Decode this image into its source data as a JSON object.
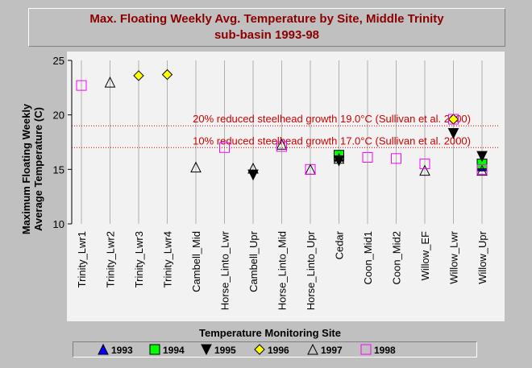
{
  "title": {
    "line1": "Max. Floating Weekly Avg. Temperature by Site, Middle Trinity",
    "line2": "sub-basin 1993-98"
  },
  "chart_data": {
    "type": "scatter",
    "title": "Max. Floating Weekly Avg. Temperature by Site, Middle Trinity sub-basin 1993-98",
    "xlabel": "Temperature Monitoring Site",
    "ylabel_lines": [
      "Maximum Floating Weekly",
      "Average Temperature (C)"
    ],
    "ylim": [
      10,
      25
    ],
    "yticks": [
      10,
      15,
      20,
      25
    ],
    "categories": [
      "Trinity_Lwr1",
      "Trinity_Lwr2",
      "Trinity_Lwr3",
      "Trinity_Lwr4",
      "Cambell_Mid",
      "Horse_Linto_Lwr",
      "Cambell_Upr",
      "Horse_Linto_Mid",
      "Horse_Linto_Upr",
      "Cedar",
      "Coon_Mid1",
      "Coon_Mid2",
      "Willow_EF",
      "Willow_Lwr",
      "Willow_Upr"
    ],
    "reference_lines": [
      {
        "value": 19.0,
        "label": "20% reduced steelhead growth 19.0°C (Sullivan et al. 2000)",
        "color": "#cc0000"
      },
      {
        "value": 17.0,
        "label": "10% reduced steelhead growth 17.0°C (Sullivan et al. 2000)",
        "color": "#cc0000"
      }
    ],
    "legend_position": "bottom",
    "series": [
      {
        "name": "1993",
        "marker": "triangle-up",
        "color": "#0000ff",
        "values": [
          null,
          null,
          null,
          null,
          null,
          null,
          null,
          null,
          null,
          16.2,
          null,
          null,
          null,
          null,
          15.3
        ]
      },
      {
        "name": "1994",
        "marker": "square",
        "color": "#00ff00",
        "values": [
          null,
          null,
          null,
          null,
          null,
          null,
          null,
          null,
          null,
          16.3,
          null,
          null,
          null,
          null,
          15.5
        ]
      },
      {
        "name": "1995",
        "marker": "triangle-down",
        "color": "#000000",
        "values": [
          null,
          null,
          null,
          null,
          null,
          null,
          14.5,
          null,
          null,
          15.8,
          null,
          null,
          null,
          18.3,
          16.2
        ]
      },
      {
        "name": "1996",
        "marker": "diamond",
        "color": "#ffff00",
        "values": [
          null,
          null,
          23.6,
          23.7,
          null,
          null,
          null,
          null,
          null,
          null,
          null,
          null,
          null,
          19.6,
          null
        ]
      },
      {
        "name": "1997",
        "marker": "triangle-up-open",
        "color": "#000000",
        "values": [
          null,
          23.0,
          null,
          null,
          15.2,
          null,
          15.1,
          17.3,
          15.0,
          16.0,
          null,
          null,
          14.9,
          null,
          14.9
        ]
      },
      {
        "name": "1998",
        "marker": "square-open",
        "color": "#ff00ff",
        "values": [
          22.7,
          null,
          null,
          null,
          null,
          17.0,
          null,
          17.1,
          15.0,
          null,
          16.1,
          16.0,
          15.5,
          19.6,
          15.0
        ]
      }
    ]
  },
  "colors": {
    "background": "#c0c0c0",
    "plot_area": "#f2f2f2",
    "title_text": "#8b0000",
    "reference_line": "#cc0000"
  }
}
